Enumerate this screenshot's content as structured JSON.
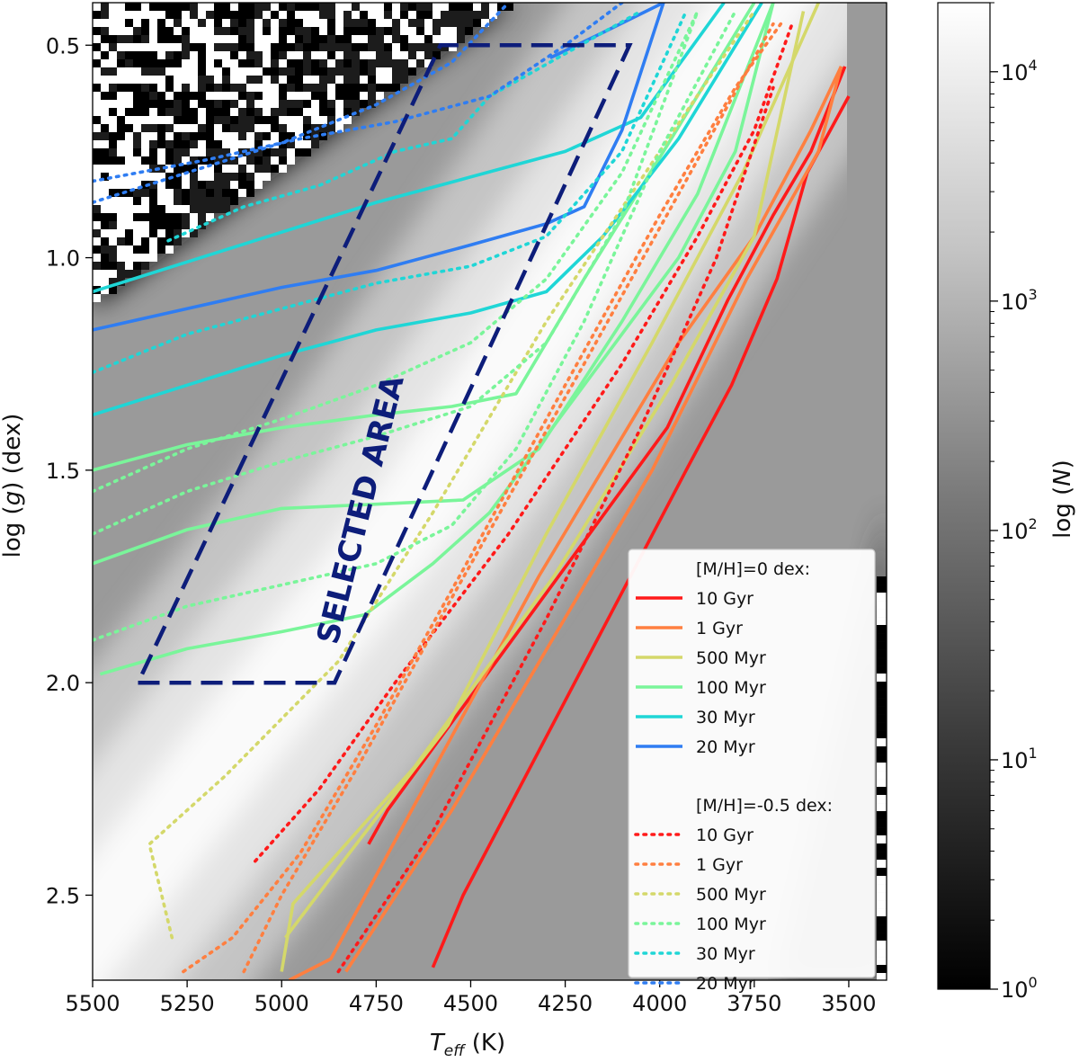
{
  "chart_data": {
    "type": "heatmap",
    "xlabel": "T_eff (K)",
    "ylabel": "log (g)  (dex)",
    "xlim": [
      5500,
      3400
    ],
    "ylim": [
      2.7,
      0.4
    ],
    "x_inverted": true,
    "y_inverted": true,
    "xticks": [
      "5500",
      "5250",
      "5000",
      "4750",
      "4500",
      "4250",
      "4000",
      "3750",
      "3500"
    ],
    "yticks": [
      "0.5",
      "1.0",
      "1.5",
      "2.0",
      "2.5"
    ],
    "colorbar": {
      "label": "log (N)",
      "scale": "log",
      "range": [
        1,
        20000
      ],
      "ticks": [
        "10^0",
        "10^1",
        "10^2",
        "10^3",
        "10^4"
      ],
      "colormap": "gray"
    },
    "annotation": {
      "text": "SELECTED AREA",
      "color": "#0d1d7a"
    },
    "selected_area": {
      "color": "#0d1d7a",
      "style": "dashed",
      "vertices": [
        [
          5380,
          2.0
        ],
        [
          4860,
          2.0
        ],
        [
          4080,
          0.5
        ],
        [
          4580,
          0.5
        ]
      ]
    },
    "legend": {
      "position": "lower-right",
      "groups": [
        {
          "title": "[M/H]=0 dex:",
          "style": "solid",
          "entries": [
            {
              "label": "10 Gyr",
              "color": "#ff1a1a"
            },
            {
              "label": "1 Gyr",
              "color": "#ff7f40"
            },
            {
              "label": "500 Myr",
              "color": "#d4d86a"
            },
            {
              "label": "100 Myr",
              "color": "#7af59a"
            },
            {
              "label": "30 Myr",
              "color": "#1fd6d6"
            },
            {
              "label": "20 Myr",
              "color": "#2f7df2"
            }
          ]
        },
        {
          "title": "[M/H]=-0.5 dex:",
          "style": "dotted",
          "entries": [
            {
              "label": "10 Gyr",
              "color": "#ff1a1a"
            },
            {
              "label": "1 Gyr",
              "color": "#ff7f40"
            },
            {
              "label": "500 Myr",
              "color": "#d4d86a"
            },
            {
              "label": "100 Myr",
              "color": "#7af59a"
            },
            {
              "label": "30 Myr",
              "color": "#1fd6d6"
            },
            {
              "label": "20 Myr",
              "color": "#2f7df2"
            }
          ]
        }
      ]
    },
    "density_ridge": [
      [
        5650,
        2.75
      ],
      [
        4650,
        1.6
      ],
      [
        3700,
        0.35
      ]
    ],
    "series": [
      {
        "name": "10 Gyr",
        "metallicity": "0",
        "style": "solid",
        "color": "#ff1a1a",
        "x": [
          4600,
          4520,
          3930,
          3810,
          3690,
          3610,
          3500
        ],
        "y": [
          2.67,
          2.5,
          1.5,
          1.3,
          1.05,
          0.8,
          0.62
        ]
      },
      {
        "name": "10 Gyr",
        "metallicity": "0",
        "style": "solid",
        "color": "#ff1a1a",
        "x": [
          4770,
          4720,
          3980,
          3820,
          3700,
          3600,
          3510
        ],
        "y": [
          2.38,
          2.3,
          1.4,
          1.1,
          0.9,
          0.75,
          0.55
        ]
      },
      {
        "name": "1 Gyr",
        "metallicity": "0",
        "style": "solid",
        "color": "#ff7f40",
        "x": [
          4980,
          4870,
          4320,
          3950,
          3750,
          3600,
          3520
        ],
        "y": [
          2.7,
          2.65,
          1.75,
          1.2,
          0.95,
          0.7,
          0.55
        ]
      },
      {
        "name": "1 Gyr",
        "metallicity": "0",
        "style": "solid",
        "color": "#ff7f40",
        "x": [
          4830,
          4550,
          4020,
          3770,
          3580,
          3520
        ],
        "y": [
          2.68,
          2.3,
          1.5,
          1.05,
          0.75,
          0.55
        ]
      },
      {
        "name": "500 Myr",
        "metallicity": "0",
        "style": "solid",
        "color": "#d4d86a",
        "x": [
          5000,
          4970,
          4800,
          4650,
          4280,
          3970,
          3750,
          3620
        ],
        "y": [
          2.68,
          2.52,
          2.35,
          2.2,
          1.75,
          1.3,
          0.95,
          0.42
        ]
      },
      {
        "name": "500 Myr",
        "metallicity": "0",
        "style": "solid",
        "color": "#d4d86a",
        "x": [
          4990,
          4820,
          4560,
          4300,
          4020,
          3780,
          3580
        ],
        "y": [
          2.6,
          2.4,
          2.1,
          1.65,
          1.2,
          0.8,
          0.4
        ]
      },
      {
        "name": "100 Myr",
        "metallicity": "0",
        "style": "solid",
        "color": "#7af59a",
        "x": [
          5480,
          5250,
          5000,
          4780,
          4600,
          4450,
          4200,
          3950,
          3800,
          3700
        ],
        "y": [
          1.98,
          1.92,
          1.88,
          1.84,
          1.72,
          1.6,
          1.3,
          1.0,
          0.75,
          0.4
        ]
      },
      {
        "name": "100 Myr",
        "metallicity": "0",
        "style": "solid",
        "color": "#7af59a",
        "x": [
          5500,
          5250,
          5000,
          4750,
          4520,
          4320,
          4100,
          3900,
          3700
        ],
        "y": [
          1.72,
          1.64,
          1.59,
          1.58,
          1.57,
          1.45,
          1.15,
          0.85,
          0.4
        ]
      },
      {
        "name": "100 Myr",
        "metallicity": "0",
        "style": "solid",
        "color": "#7af59a",
        "x": [
          5500,
          5250,
          5000,
          4750,
          4550,
          4380,
          4200,
          3990,
          3750
        ],
        "y": [
          1.5,
          1.44,
          1.4,
          1.37,
          1.35,
          1.32,
          1.05,
          0.75,
          0.4
        ]
      },
      {
        "name": "30 Myr",
        "metallicity": "0",
        "style": "solid",
        "color": "#1fd6d6",
        "x": [
          5500,
          5250,
          5000,
          4750,
          4500,
          4300,
          4150,
          3950,
          3730
        ],
        "y": [
          1.37,
          1.3,
          1.23,
          1.17,
          1.13,
          1.08,
          0.95,
          0.72,
          0.4
        ]
      },
      {
        "name": "30 Myr",
        "metallicity": "0",
        "style": "solid",
        "color": "#1fd6d6",
        "x": [
          5500,
          5250,
          5000,
          4750,
          4500,
          4250,
          4050,
          3830
        ],
        "y": [
          1.08,
          1.01,
          0.94,
          0.87,
          0.81,
          0.75,
          0.67,
          0.4
        ]
      },
      {
        "name": "20 Myr",
        "metallicity": "0",
        "style": "solid",
        "color": "#2f7df2",
        "x": [
          5500,
          5250,
          5000,
          4750,
          4500,
          4300,
          4200,
          4100,
          3990
        ],
        "y": [
          1.17,
          1.12,
          1.07,
          1.03,
          0.97,
          0.92,
          0.88,
          0.7,
          0.4
        ]
      },
      {
        "name": "20 Myr",
        "metallicity": "0",
        "style": "solid",
        "color": "#2f7df2",
        "x": [
          4290,
          4150,
          3990
        ],
        "y": [
          0.53,
          0.47,
          0.4
        ]
      },
      {
        "name": "10 Gyr",
        "metallicity": "-0.5",
        "style": "dotted",
        "color": "#ff1a1a",
        "x": [
          5070,
          4900,
          4700,
          4400,
          4100,
          3900,
          3750,
          3650
        ],
        "y": [
          2.42,
          2.25,
          2.0,
          1.65,
          1.25,
          0.95,
          0.7,
          0.45
        ]
      },
      {
        "name": "10 Gyr",
        "metallicity": "-0.5",
        "style": "dotted",
        "color": "#ff1a1a",
        "x": [
          4850,
          4600,
          4300,
          4050,
          3850,
          3700
        ],
        "y": [
          2.68,
          2.35,
          1.85,
          1.4,
          1.0,
          0.6
        ]
      },
      {
        "name": "1 Gyr",
        "metallicity": "-0.5",
        "style": "dotted",
        "color": "#ff7f40",
        "x": [
          5260,
          5130,
          4950,
          4750,
          4530,
          4250,
          4000,
          3800,
          3680
        ],
        "y": [
          2.68,
          2.6,
          2.4,
          2.1,
          1.75,
          1.3,
          0.9,
          0.6,
          0.45
        ]
      },
      {
        "name": "1 Gyr",
        "metallicity": "-0.5",
        "style": "dotted",
        "color": "#ff7f40",
        "x": [
          5100,
          5000,
          4800,
          4550,
          4200,
          3950,
          3700
        ],
        "y": [
          2.68,
          2.5,
          2.2,
          1.8,
          1.25,
          0.85,
          0.45
        ]
      },
      {
        "name": "500 Myr",
        "metallicity": "-0.5",
        "style": "dotted",
        "color": "#d4d86a",
        "x": [
          5290,
          5350,
          5150,
          4850,
          4600,
          4300,
          4000,
          3750
        ],
        "y": [
          2.6,
          2.38,
          2.22,
          1.95,
          1.6,
          1.15,
          0.75,
          0.42
        ]
      },
      {
        "name": "100 Myr",
        "metallicity": "-0.5",
        "style": "dotted",
        "color": "#7af59a",
        "x": [
          5500,
          5250,
          5000,
          4750,
          4550,
          4380,
          4200,
          4000,
          3800
        ],
        "y": [
          1.9,
          1.82,
          1.77,
          1.72,
          1.63,
          1.45,
          1.15,
          0.75,
          0.42
        ]
      },
      {
        "name": "100 Myr",
        "metallicity": "-0.5",
        "style": "dotted",
        "color": "#7af59a",
        "x": [
          5500,
          5250,
          5000,
          4750,
          4500,
          4300,
          4100,
          3900
        ],
        "y": [
          1.65,
          1.55,
          1.48,
          1.42,
          1.35,
          1.2,
          0.9,
          0.42
        ]
      },
      {
        "name": "100 Myr",
        "metallicity": "-0.5",
        "style": "dotted",
        "color": "#7af59a",
        "x": [
          5500,
          5250,
          5000,
          4750,
          4500,
          4300,
          4100,
          3900
        ],
        "y": [
          1.55,
          1.45,
          1.38,
          1.3,
          1.2,
          1.05,
          0.8,
          0.42
        ]
      },
      {
        "name": "30 Myr",
        "metallicity": "-0.5",
        "style": "dotted",
        "color": "#1fd6d6",
        "x": [
          5500,
          5250,
          5000,
          4750,
          4500,
          4300,
          4100,
          3930
        ],
        "y": [
          1.27,
          1.18,
          1.12,
          1.06,
          1.02,
          0.95,
          0.75,
          0.42
        ]
      },
      {
        "name": "30 Myr",
        "metallicity": "-0.5",
        "style": "dotted",
        "color": "#1fd6d6",
        "x": [
          5300,
          5100,
          4900,
          4700,
          4550,
          4450,
          4250,
          4050
        ],
        "y": [
          0.96,
          0.88,
          0.83,
          0.75,
          0.72,
          0.62,
          0.52,
          0.42
        ]
      },
      {
        "name": "20 Myr",
        "metallicity": "-0.5",
        "style": "dotted",
        "color": "#2f7df2",
        "x": [
          5500,
          5200,
          4950,
          4700,
          4450,
          4250,
          4100
        ],
        "y": [
          0.82,
          0.77,
          0.72,
          0.68,
          0.62,
          0.5,
          0.4
        ]
      },
      {
        "name": "20 Myr",
        "metallicity": "-0.5",
        "style": "dotted",
        "color": "#2f7df2",
        "x": [
          5500,
          5250,
          5000,
          4750,
          4550,
          4400
        ],
        "y": [
          0.87,
          0.8,
          0.73,
          0.64,
          0.54,
          0.4
        ]
      }
    ]
  }
}
